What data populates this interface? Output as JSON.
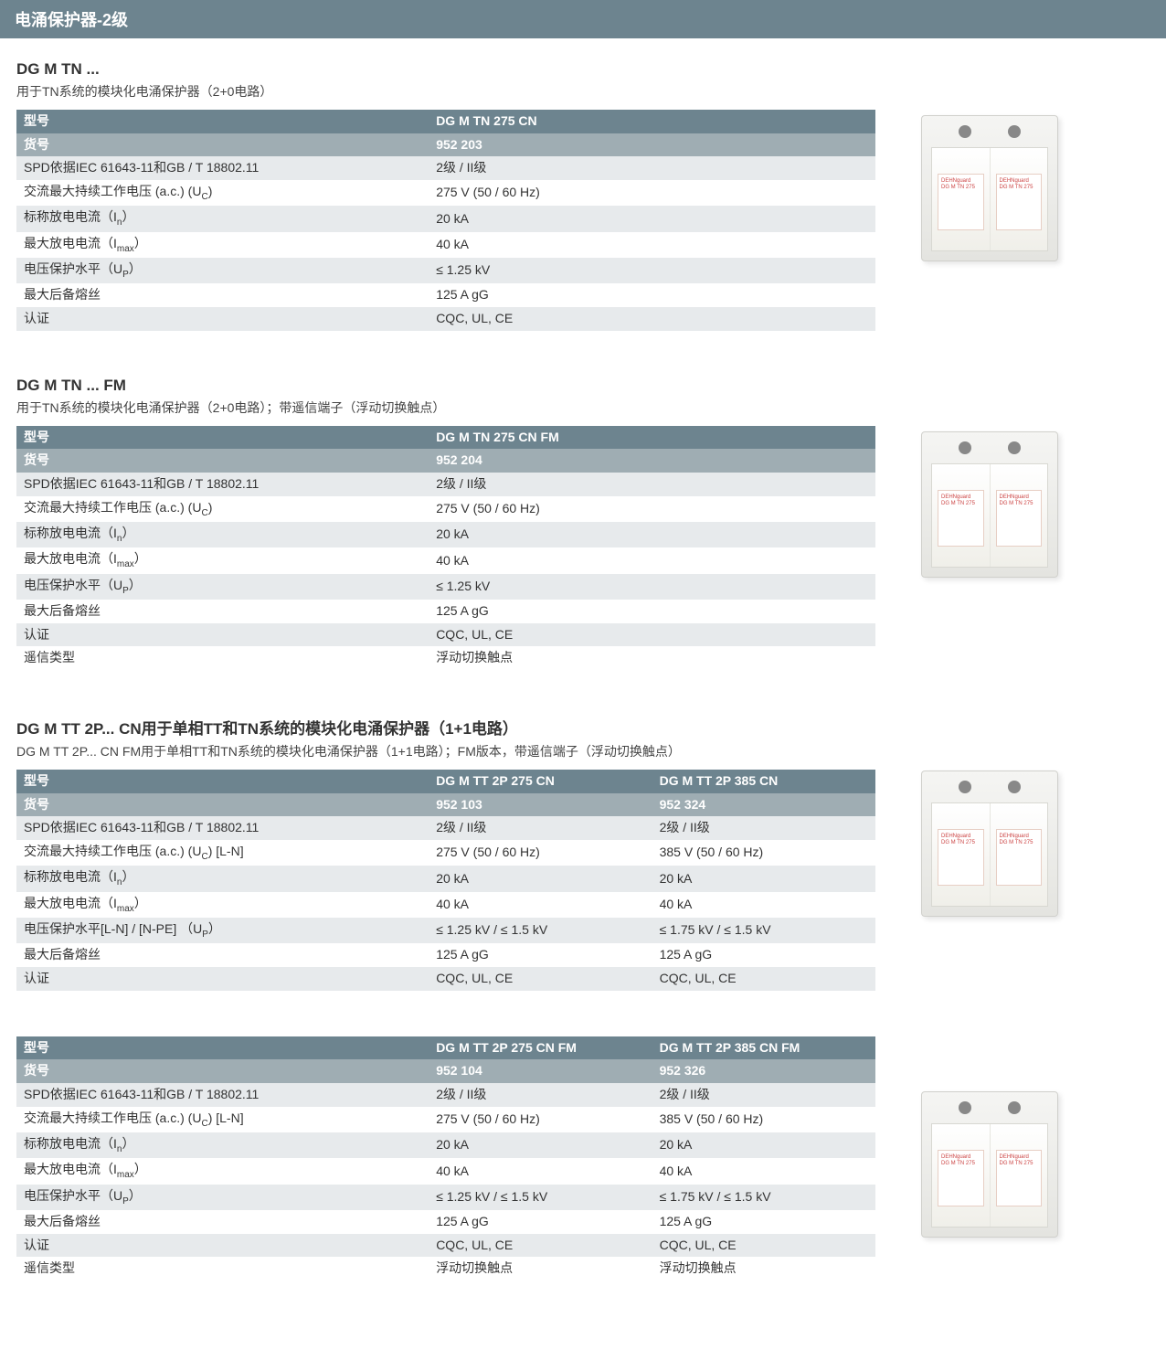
{
  "colors": {
    "header_bg": "#6d848f",
    "subhead_bg": "#9fadb3",
    "row_even_bg": "#e7eaec",
    "row_odd_bg": "#ffffff",
    "header_text": "#ffffff"
  },
  "page_title": "电涌保护器-2级",
  "sections": [
    {
      "title": "DG M TN ...",
      "subtitle": "用于TN系统的模块化电涌保护器（2+0电路）",
      "tables": [
        {
          "cols": 2,
          "rows": [
            {
              "type": "header",
              "cells": [
                "型号",
                "DG M TN 275 CN"
              ]
            },
            {
              "type": "subhead",
              "cells": [
                "货号",
                "952 203"
              ]
            },
            {
              "type": "data",
              "cells": [
                "SPD依据IEC 61643-11和GB / T 18802.11",
                "2级 / II级"
              ]
            },
            {
              "type": "data",
              "cells": [
                "交流最大持续工作电压 (a.c.)  (U<sub>C</sub>)",
                "275 V (50 / 60 Hz)"
              ]
            },
            {
              "type": "data",
              "cells": [
                "标称放电电流（I<sub>n</sub>）",
                "20 kA"
              ]
            },
            {
              "type": "data",
              "cells": [
                "最大放电电流（I<sub>max</sub>）",
                "40 kA"
              ]
            },
            {
              "type": "data",
              "cells": [
                "电压保护水平（U<sub>P</sub>）",
                "≤ 1.25 kV"
              ]
            },
            {
              "type": "data",
              "cells": [
                "最大后备熔丝",
                "125 A gG"
              ]
            },
            {
              "type": "data",
              "cells": [
                "认证",
                "CQC, UL, CE"
              ]
            }
          ]
        }
      ]
    },
    {
      "title": "DG M TN ... FM",
      "subtitle": "用于TN系统的模块化电涌保护器（2+0电路）；带遥信端子（浮动切换触点）",
      "tables": [
        {
          "cols": 2,
          "rows": [
            {
              "type": "header",
              "cells": [
                "型号",
                "DG M TN 275 CN FM"
              ]
            },
            {
              "type": "subhead",
              "cells": [
                "货号",
                "952 204"
              ]
            },
            {
              "type": "data",
              "cells": [
                "SPD依据IEC 61643-11和GB / T 18802.11",
                "2级 / II级"
              ]
            },
            {
              "type": "data",
              "cells": [
                "交流最大持续工作电压 (a.c.)  (U<sub>C</sub>)",
                "275 V (50 / 60 Hz)"
              ]
            },
            {
              "type": "data",
              "cells": [
                "标称放电电流（I<sub>n</sub>）",
                "20 kA"
              ]
            },
            {
              "type": "data",
              "cells": [
                "最大放电电流（I<sub>max</sub>）",
                "40 kA"
              ]
            },
            {
              "type": "data",
              "cells": [
                "电压保护水平（U<sub>P</sub>）",
                "≤ 1.25 kV"
              ]
            },
            {
              "type": "data",
              "cells": [
                "最大后备熔丝",
                "125 A gG"
              ]
            },
            {
              "type": "data",
              "cells": [
                "认证",
                "CQC, UL, CE"
              ]
            },
            {
              "type": "data",
              "cells": [
                "遥信类型",
                "浮动切换触点"
              ]
            }
          ]
        }
      ]
    },
    {
      "title": "DG M TT 2P... CN用于单相TT和TN系统的模块化电涌保护器（1+1电路）",
      "subtitle": "DG M TT 2P... CN FM用于单相TT和TN系统的模块化电涌保护器（1+1电路）；FM版本，带遥信端子（浮动切换触点）",
      "tables": [
        {
          "cols": 3,
          "rows": [
            {
              "type": "header",
              "cells": [
                "型号",
                "DG M TT 2P 275 CN",
                "DG M TT 2P 385 CN"
              ]
            },
            {
              "type": "subhead",
              "cells": [
                "货号",
                "952 103",
                "952 324"
              ]
            },
            {
              "type": "data",
              "cells": [
                "SPD依据IEC 61643-11和GB / T 18802.11",
                "2级 / II级",
                "2级 / II级"
              ]
            },
            {
              "type": "data",
              "cells": [
                "交流最大持续工作电压 (a.c.)  (U<sub>C</sub>) [L-N]",
                "275 V (50 / 60 Hz)",
                "385 V (50 / 60 Hz)"
              ]
            },
            {
              "type": "data",
              "cells": [
                "标称放电电流（I<sub>n</sub>）",
                "20 kA",
                "20 kA"
              ]
            },
            {
              "type": "data",
              "cells": [
                "最大放电电流（I<sub>max</sub>）",
                "40 kA",
                "40 kA"
              ]
            },
            {
              "type": "data",
              "cells": [
                "电压保护水平[L-N] / [N-PE] （U<sub>P</sub>）",
                "≤ 1.25 kV / ≤ 1.5 kV",
                "≤ 1.75 kV / ≤ 1.5 kV"
              ]
            },
            {
              "type": "data",
              "cells": [
                "最大后备熔丝",
                "125 A gG",
                "125 A gG"
              ]
            },
            {
              "type": "data",
              "cells": [
                "认证",
                "CQC, UL, CE",
                "CQC, UL, CE"
              ]
            }
          ]
        },
        {
          "cols": 3,
          "rows": [
            {
              "type": "header",
              "cells": [
                "型号",
                "DG M TT 2P 275 CN FM",
                "DG M TT 2P 385 CN FM"
              ]
            },
            {
              "type": "subhead",
              "cells": [
                "货号",
                "952 104",
                "952 326"
              ]
            },
            {
              "type": "data",
              "cells": [
                "SPD依据IEC 61643-11和GB / T 18802.11",
                "2级 / II级",
                "2级 / II级"
              ]
            },
            {
              "type": "data",
              "cells": [
                "交流最大持续工作电压 (a.c.)  (U<sub>C</sub>) [L-N]",
                "275 V (50 / 60 Hz)",
                "385 V (50 / 60 Hz)"
              ]
            },
            {
              "type": "data",
              "cells": [
                "标称放电电流（I<sub>n</sub>）",
                "20 kA",
                "20 kA"
              ]
            },
            {
              "type": "data",
              "cells": [
                "最大放电电流（I<sub>max</sub>）",
                "40 kA",
                "40 kA"
              ]
            },
            {
              "type": "data",
              "cells": [
                "电压保护水平（U<sub>P</sub>）",
                "≤ 1.25 kV / ≤ 1.5 kV",
                "≤ 1.75 kV / ≤ 1.5 kV"
              ]
            },
            {
              "type": "data",
              "cells": [
                "最大后备熔丝",
                "125 A gG",
                "125 A gG"
              ]
            },
            {
              "type": "data",
              "cells": [
                "认证",
                "CQC, UL, CE",
                "CQC, UL, CE"
              ]
            },
            {
              "type": "data",
              "cells": [
                "遥信类型",
                "浮动切换触点",
                "浮动切换触点"
              ]
            }
          ]
        }
      ]
    }
  ]
}
